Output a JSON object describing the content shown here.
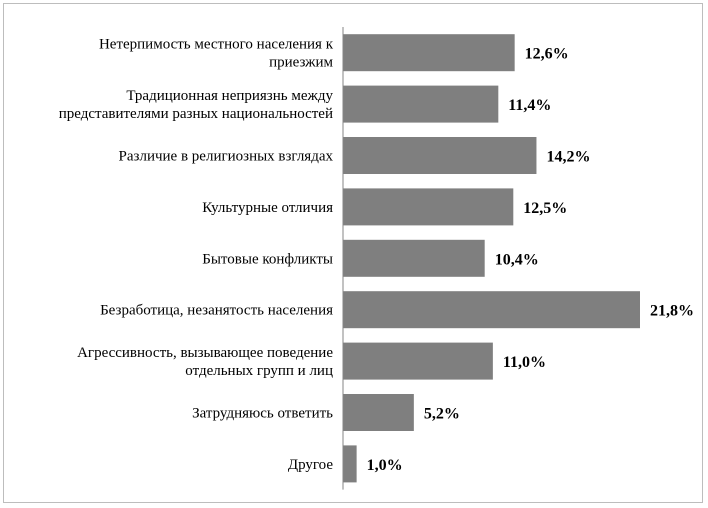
{
  "chart_data": {
    "type": "bar",
    "orientation": "horizontal",
    "categories": [
      "Нетерпимость местного населения к приезжим",
      "Традиционная неприязнь между представителями разных национальностей",
      "Различие в религиозных взглядах",
      "Культурные отличия",
      "Бытовые конфликты",
      "Безработица, незанятость населения",
      "Агрессивность, вызывающее поведение отдельных групп и лиц",
      "Затрудняюсь ответить",
      "Другое"
    ],
    "category_label_lines": [
      [
        "Нетерпимость местного населения к",
        "приезжим"
      ],
      [
        "Традиционная неприязнь между",
        "представителями разных национальностей"
      ],
      [
        "Различие в религиозных взглядах"
      ],
      [
        "Культурные отличия"
      ],
      [
        "Бытовые конфликты"
      ],
      [
        "Безработица, незанятость населения"
      ],
      [
        "Агрессивность, вызывающее поведение",
        "отдельных групп и лиц"
      ],
      [
        "Затрудняюсь ответить"
      ],
      [
        "Другое"
      ]
    ],
    "values": [
      12.6,
      11.4,
      14.2,
      12.5,
      10.4,
      21.8,
      11.0,
      5.2,
      1.0
    ],
    "value_labels": [
      "12,6%",
      "11,4%",
      "14,2%",
      "12,5%",
      "10,4%",
      "21,8%",
      "11,0%",
      "5,2%",
      "1,0%"
    ],
    "xlim": [
      0,
      21.8
    ],
    "title": "",
    "xlabel": "",
    "ylabel": "",
    "grid": false,
    "legend": "none",
    "bar_color": "#7f7f7f",
    "axis_color": "#868686"
  }
}
